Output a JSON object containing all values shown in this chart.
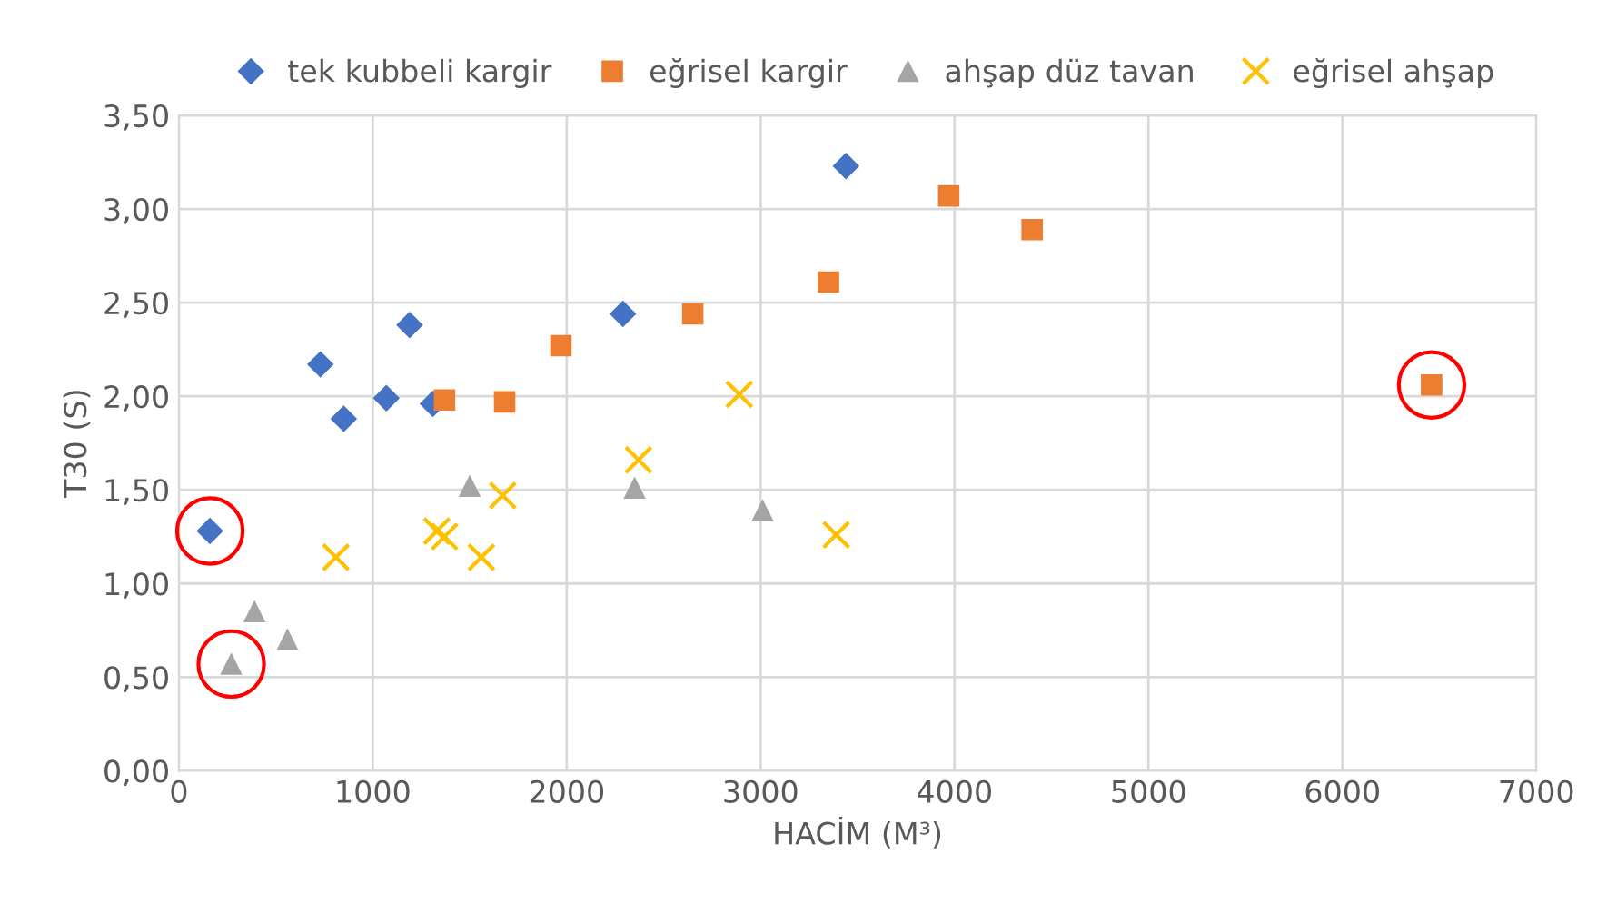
{
  "chart_data": {
    "type": "scatter",
    "xlabel": "HACİM (M³)",
    "ylabel": "T30 (S)",
    "xlim": [
      0,
      7000
    ],
    "xticks": [
      0,
      1000,
      2000,
      3000,
      4000,
      5000,
      6000,
      7000
    ],
    "ylim": [
      0,
      3.5
    ],
    "yticks": [
      {
        "value": 0,
        "label": "0,00"
      },
      {
        "value": 0.5,
        "label": "0,50"
      },
      {
        "value": 1.0,
        "label": "1,00"
      },
      {
        "value": 1.5,
        "label": "1,50"
      },
      {
        "value": 2.0,
        "label": "2,00"
      },
      {
        "value": 2.5,
        "label": "2,50"
      },
      {
        "value": 3.0,
        "label": "3,00"
      },
      {
        "value": 3.5,
        "label": "3,50"
      }
    ],
    "grid": true,
    "legend": "top",
    "series": [
      {
        "name": "tek kubbeli kargir",
        "color": "#4472c4",
        "marker": "diamond",
        "x": [
          160,
          730,
          850,
          1070,
          1190,
          1310,
          2290,
          3440
        ],
        "values": [
          1.28,
          2.17,
          1.88,
          1.99,
          2.38,
          1.96,
          2.44,
          3.23
        ]
      },
      {
        "name": "eğrisel kargir",
        "color": "#ed7d31",
        "marker": "square",
        "x": [
          1370,
          1680,
          1970,
          2650,
          3350,
          3970,
          4400,
          6460
        ],
        "values": [
          1.98,
          1.97,
          2.27,
          2.44,
          2.61,
          3.07,
          2.89,
          2.06
        ]
      },
      {
        "name": "ahşap düz tavan",
        "color": "#a5a5a5",
        "marker": "triangle",
        "x": [
          390,
          560,
          270,
          1500,
          2350,
          3010
        ],
        "values": [
          0.85,
          0.7,
          0.57,
          1.52,
          1.51,
          1.39
        ]
      },
      {
        "name": "eğrisel ahşap",
        "color": "#ffc000",
        "marker": "cross",
        "x": [
          810,
          1330,
          1370,
          1560,
          1670,
          2370,
          2890,
          3390
        ],
        "values": [
          1.14,
          1.28,
          1.25,
          1.14,
          1.47,
          1.66,
          2.01,
          1.26
        ]
      },
      {
        "color": "#ff0000",
        "marker": "circle",
        "x": [
          160,
          270,
          6460
        ],
        "values": [
          1.28,
          0.57,
          2.06
        ]
      }
    ]
  }
}
